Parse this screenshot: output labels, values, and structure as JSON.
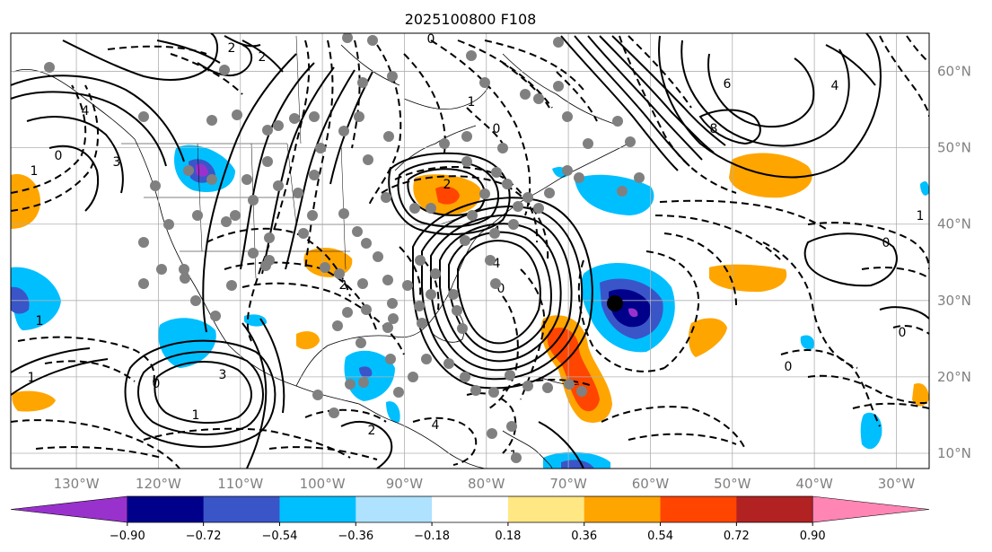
{
  "title": "2025100800 F108",
  "map": {
    "longitude_labels": [
      "130°W",
      "120°W",
      "110°W",
      "100°W",
      "90°W",
      "80°W",
      "70°W",
      "60°W",
      "50°W",
      "40°W",
      "30°W"
    ],
    "latitude_labels": [
      "60°N",
      "50°N",
      "40°N",
      "30°N",
      "20°N",
      "10°N"
    ],
    "longitude_values": [
      -130,
      -120,
      -110,
      -100,
      -90,
      -80,
      -70,
      -60,
      -50,
      -40,
      -30
    ],
    "latitude_values": [
      60,
      50,
      40,
      30,
      20,
      10
    ],
    "extent": {
      "lon_min": -138,
      "lon_max": -26,
      "lat_min": 8,
      "lat_max": 65
    },
    "contour_labels": [
      "2",
      "2",
      "0",
      "1",
      "3",
      "4",
      "6",
      "8",
      "4",
      "0",
      "1",
      "0",
      "2",
      "4",
      "2",
      "4",
      "0",
      "1",
      "1",
      "0",
      "1",
      "3",
      "2",
      "4",
      "1",
      "0",
      "0",
      "0",
      "1"
    ]
  },
  "colorbar": {
    "tick_labels": [
      "−0.90",
      "−0.72",
      "−0.54",
      "−0.36",
      "−0.18",
      "0.18",
      "0.36",
      "0.54",
      "0.72",
      "0.90"
    ],
    "tick_values": [
      -0.9,
      -0.72,
      -0.54,
      -0.36,
      -0.18,
      0.18,
      0.36,
      0.54,
      0.72,
      0.9
    ],
    "colors": [
      "#9932cc",
      "#00008b",
      "#3a55c8",
      "#00bfff",
      "#aee2ff",
      "#ffffff",
      "#ffe784",
      "#ffa500",
      "#ff4500",
      "#b22222",
      "#ff85b4"
    ]
  }
}
